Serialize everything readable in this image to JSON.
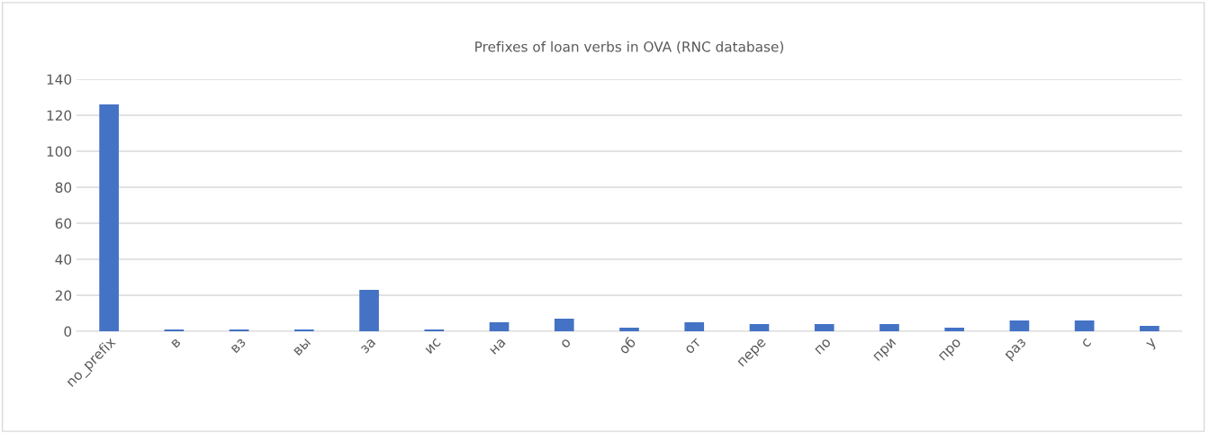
{
  "chart_data": {
    "type": "bar",
    "title": "Prefixes of loan verbs in OVA (RNC database)",
    "categories": [
      "no_prefix",
      "в",
      "вз",
      "вы",
      "за",
      "ис",
      "на",
      "о",
      "об",
      "от",
      "пере",
      "по",
      "при",
      "про",
      "раз",
      "с",
      "у"
    ],
    "values": [
      126,
      1,
      1,
      1,
      23,
      1,
      5,
      7,
      2,
      5,
      4,
      4,
      4,
      2,
      6,
      6,
      3
    ],
    "color": "#4472c4",
    "ylim": [
      0,
      140
    ],
    "yticks": [
      0,
      20,
      40,
      60,
      80,
      100,
      120,
      140
    ],
    "grid": "y",
    "legend": false
  }
}
